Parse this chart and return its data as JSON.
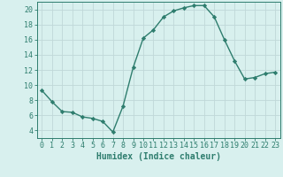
{
  "x": [
    0,
    1,
    2,
    3,
    4,
    5,
    6,
    7,
    8,
    9,
    10,
    11,
    12,
    13,
    14,
    15,
    16,
    17,
    18,
    19,
    20,
    21,
    22,
    23
  ],
  "y": [
    9.3,
    7.8,
    6.5,
    6.4,
    5.8,
    5.6,
    5.2,
    3.8,
    7.2,
    12.3,
    16.2,
    17.3,
    19.0,
    19.8,
    20.2,
    20.5,
    20.5,
    19.0,
    16.0,
    13.2,
    10.8,
    11.0,
    11.5,
    11.7
  ],
  "line_color": "#2e7d6e",
  "marker": "D",
  "marker_size": 2.2,
  "bg_color": "#d8f0ee",
  "grid_color": "#c0d8d8",
  "axis_color": "#2e7d6e",
  "xlabel": "Humidex (Indice chaleur)",
  "xlim": [
    -0.5,
    23.5
  ],
  "ylim": [
    3,
    21
  ],
  "yticks": [
    4,
    6,
    8,
    10,
    12,
    14,
    16,
    18,
    20
  ],
  "xticks": [
    0,
    1,
    2,
    3,
    4,
    5,
    6,
    7,
    8,
    9,
    10,
    11,
    12,
    13,
    14,
    15,
    16,
    17,
    18,
    19,
    20,
    21,
    22,
    23
  ],
  "label_fontsize": 7,
  "tick_fontsize": 6
}
